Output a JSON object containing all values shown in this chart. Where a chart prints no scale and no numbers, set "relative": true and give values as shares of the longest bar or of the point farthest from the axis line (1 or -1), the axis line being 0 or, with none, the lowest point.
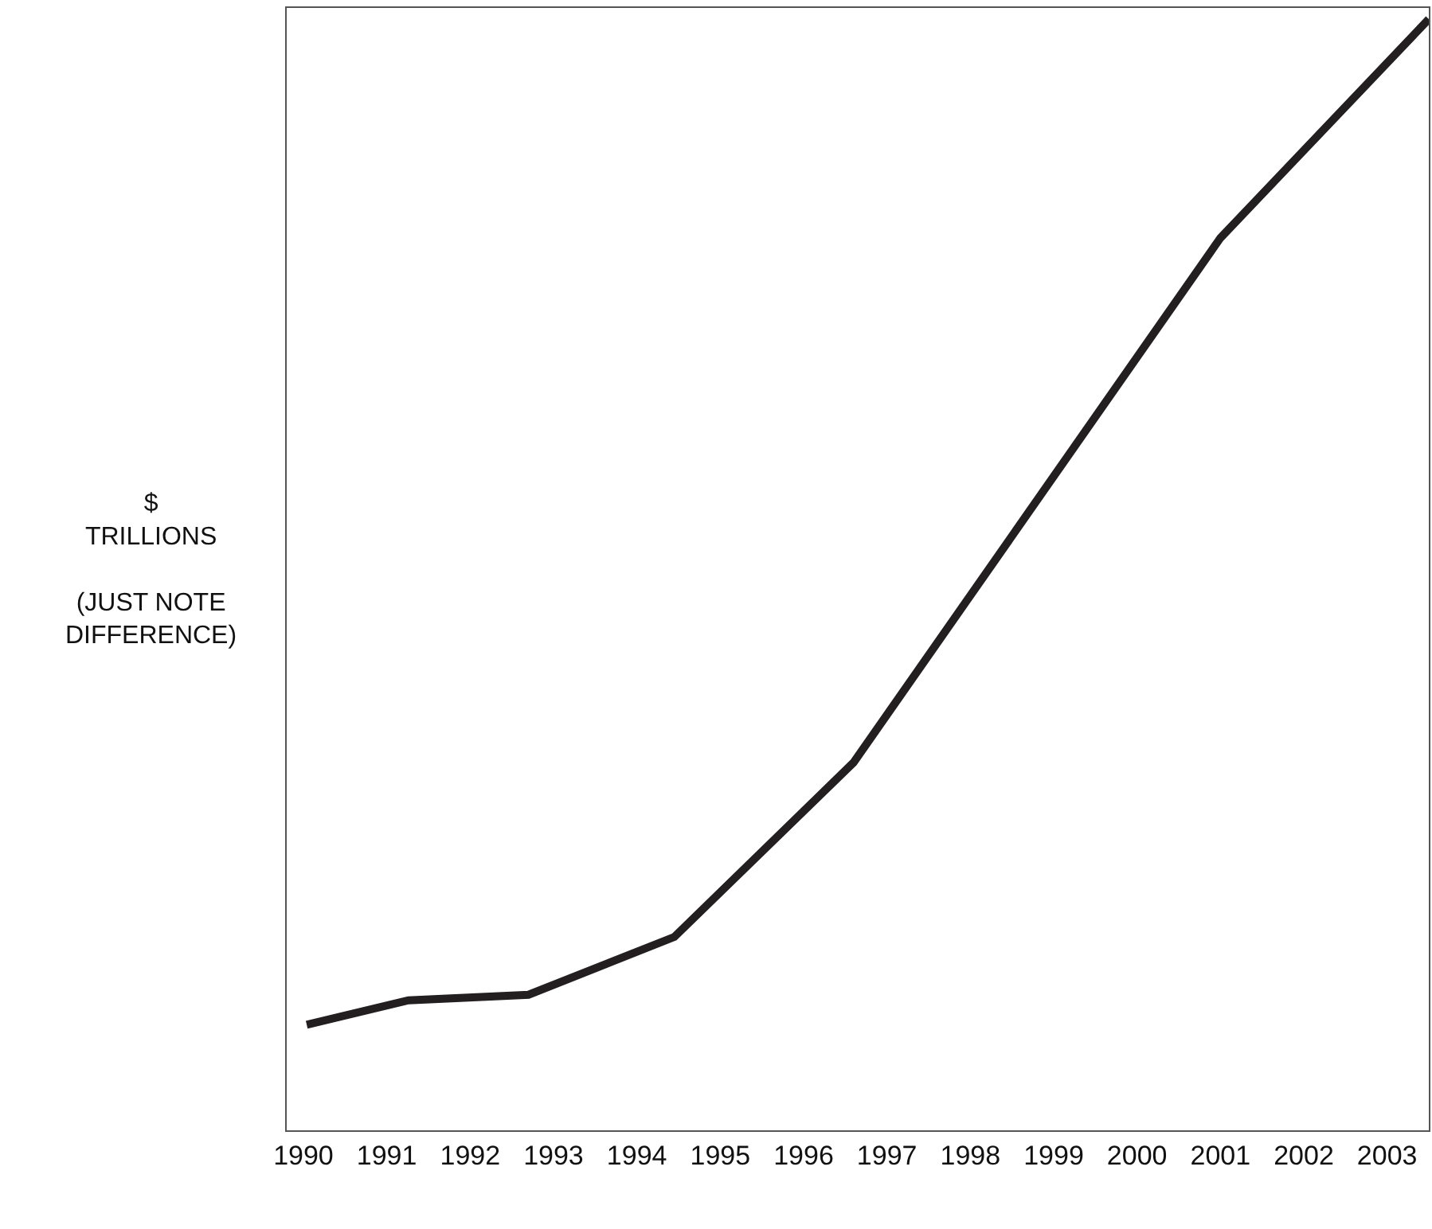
{
  "chart_data": {
    "type": "line",
    "relative": true,
    "ylabel": "$\nTRILLIONS\n\n(JUST NOTE\nDIFFERENCE)",
    "x": [
      1990.04,
      1991.26,
      1992.7,
      1994.45,
      1996.6,
      2001.0,
      2003.5
    ],
    "series": [
      {
        "color": "#231f20",
        "values": [
          0.095,
          0.117,
          0.122,
          0.174,
          0.331,
          0.803,
          1.0
        ]
      }
    ],
    "xlim": [
      1989.8,
      2003.5
    ],
    "xticks": [
      1990,
      1991,
      1992,
      1993,
      1994,
      1995,
      1996,
      1997,
      1998,
      1999,
      2000,
      2001,
      2002,
      2003
    ],
    "marker": "none",
    "line_style": "solid"
  }
}
